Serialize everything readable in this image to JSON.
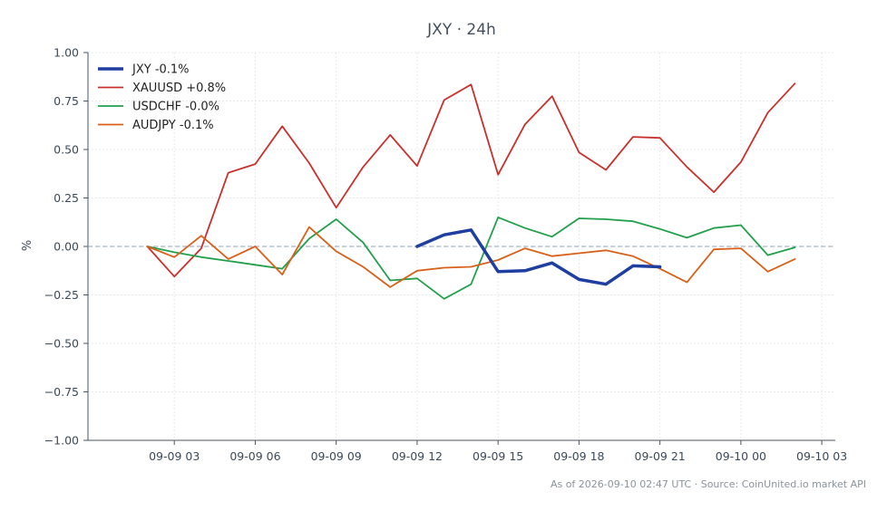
{
  "chart_data": {
    "type": "line",
    "title": "JXY · 24h",
    "ylabel": "%",
    "xlabel": "",
    "ylim": [
      -1.0,
      1.0
    ],
    "y_ticks": [
      1.0,
      0.75,
      0.5,
      0.25,
      0.0,
      -0.25,
      -0.5,
      -0.75,
      -1.0
    ],
    "y_tick_labels": [
      "1.00",
      "0.75",
      "0.50",
      "0.25",
      "0.00",
      "−0.25",
      "−0.50",
      "−0.75",
      "−1.00"
    ],
    "x_ticks": [
      "09-09 03",
      "09-09 06",
      "09-09 09",
      "09-09 12",
      "09-09 15",
      "09-09 18",
      "09-09 21",
      "09-10 00",
      "09-10 03"
    ],
    "x_tick_hours": [
      3,
      6,
      9,
      12,
      15,
      18,
      21,
      24,
      27
    ],
    "xlim_hours": [
      -0.2,
      27.5
    ],
    "legend_position": "top-left",
    "zero_line": true,
    "grid": true,
    "footnote": "As of 2026-09-10 02:47 UTC · Source: CoinUnited.io market API",
    "series": [
      {
        "name": "JXY -0.1%",
        "color": "#1f3fa0",
        "width": 3.5,
        "x_hours": [
          12,
          13,
          14,
          15,
          16,
          17,
          18,
          19,
          20,
          21
        ],
        "values": [
          0.0,
          0.06,
          0.085,
          -0.13,
          -0.125,
          -0.085,
          -0.17,
          -0.195,
          -0.1,
          -0.105
        ]
      },
      {
        "name": "XAUUSD +0.8%",
        "color": "#c9302c",
        "width": 1.8,
        "x_hours": [
          2,
          3,
          4,
          5,
          6,
          7,
          8,
          9,
          10,
          11,
          12,
          13,
          14,
          15,
          16,
          17,
          18,
          19,
          20,
          21,
          22,
          23,
          24,
          25,
          26
        ],
        "values": [
          0.0,
          -0.155,
          -0.01,
          0.38,
          0.425,
          0.62,
          0.43,
          0.2,
          0.41,
          0.575,
          0.415,
          0.755,
          0.835,
          0.37,
          0.63,
          0.775,
          0.485,
          0.395,
          0.565,
          0.56,
          0.41,
          0.28,
          0.435,
          0.69,
          0.84
        ]
      },
      {
        "name": "USDCHF -0.0%",
        "color": "#22a04b",
        "width": 1.8,
        "x_hours": [
          2,
          3,
          4,
          5,
          6,
          7,
          8,
          9,
          10,
          11,
          12,
          13,
          14,
          15,
          16,
          17,
          18,
          19,
          20,
          21,
          22,
          23,
          24,
          25,
          26
        ],
        "values": [
          0.0,
          -0.03,
          -0.055,
          -0.075,
          -0.095,
          -0.115,
          0.04,
          0.14,
          0.02,
          -0.175,
          -0.165,
          -0.27,
          -0.195,
          0.15,
          0.095,
          0.05,
          0.145,
          0.14,
          0.13,
          0.09,
          0.045,
          0.095,
          0.11,
          -0.045,
          -0.005
        ]
      },
      {
        "name": "AUDJPY -0.1%",
        "color": "#d9601a",
        "width": 1.8,
        "x_hours": [
          2,
          3,
          4,
          5,
          6,
          7,
          8,
          9,
          10,
          11,
          12,
          13,
          14,
          15,
          16,
          17,
          18,
          19,
          20,
          21,
          22,
          23,
          24,
          25,
          26
        ],
        "values": [
          0.0,
          -0.055,
          0.055,
          -0.065,
          0.0,
          -0.145,
          0.1,
          -0.025,
          -0.105,
          -0.21,
          -0.125,
          -0.11,
          -0.105,
          -0.07,
          -0.01,
          -0.05,
          -0.035,
          -0.02,
          -0.05,
          -0.115,
          -0.185,
          -0.015,
          -0.01,
          -0.13,
          -0.065
        ]
      }
    ]
  }
}
